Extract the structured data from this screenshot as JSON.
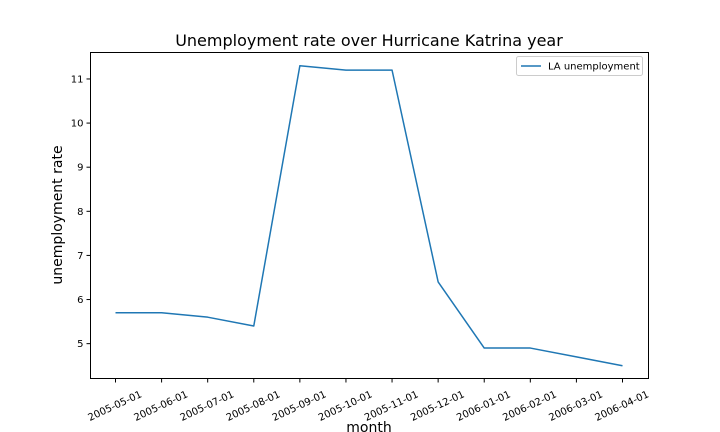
{
  "chart_data": {
    "type": "line",
    "title": "Unemployment rate over Hurricane Katrina year",
    "xlabel": "month",
    "ylabel": "unemployment rate",
    "categories": [
      "2005-05-01",
      "2005-06-01",
      "2005-07-01",
      "2005-08-01",
      "2005-09-01",
      "2005-10-01",
      "2005-11-01",
      "2005-12-01",
      "2006-01-01",
      "2006-02-01",
      "2006-03-01",
      "2006-04-01"
    ],
    "series": [
      {
        "name": "LA unemployment",
        "color": "#1f77b4",
        "values": [
          5.7,
          5.7,
          5.6,
          5.4,
          11.3,
          11.2,
          11.2,
          6.4,
          4.9,
          4.9,
          4.7,
          4.5
        ]
      }
    ],
    "ylim": [
      4.21,
      11.6
    ],
    "yticks": [
      5,
      6,
      7,
      8,
      9,
      10,
      11
    ],
    "xtick_rotation_deg": 25,
    "grid": false,
    "legend_position": "upper right"
  }
}
